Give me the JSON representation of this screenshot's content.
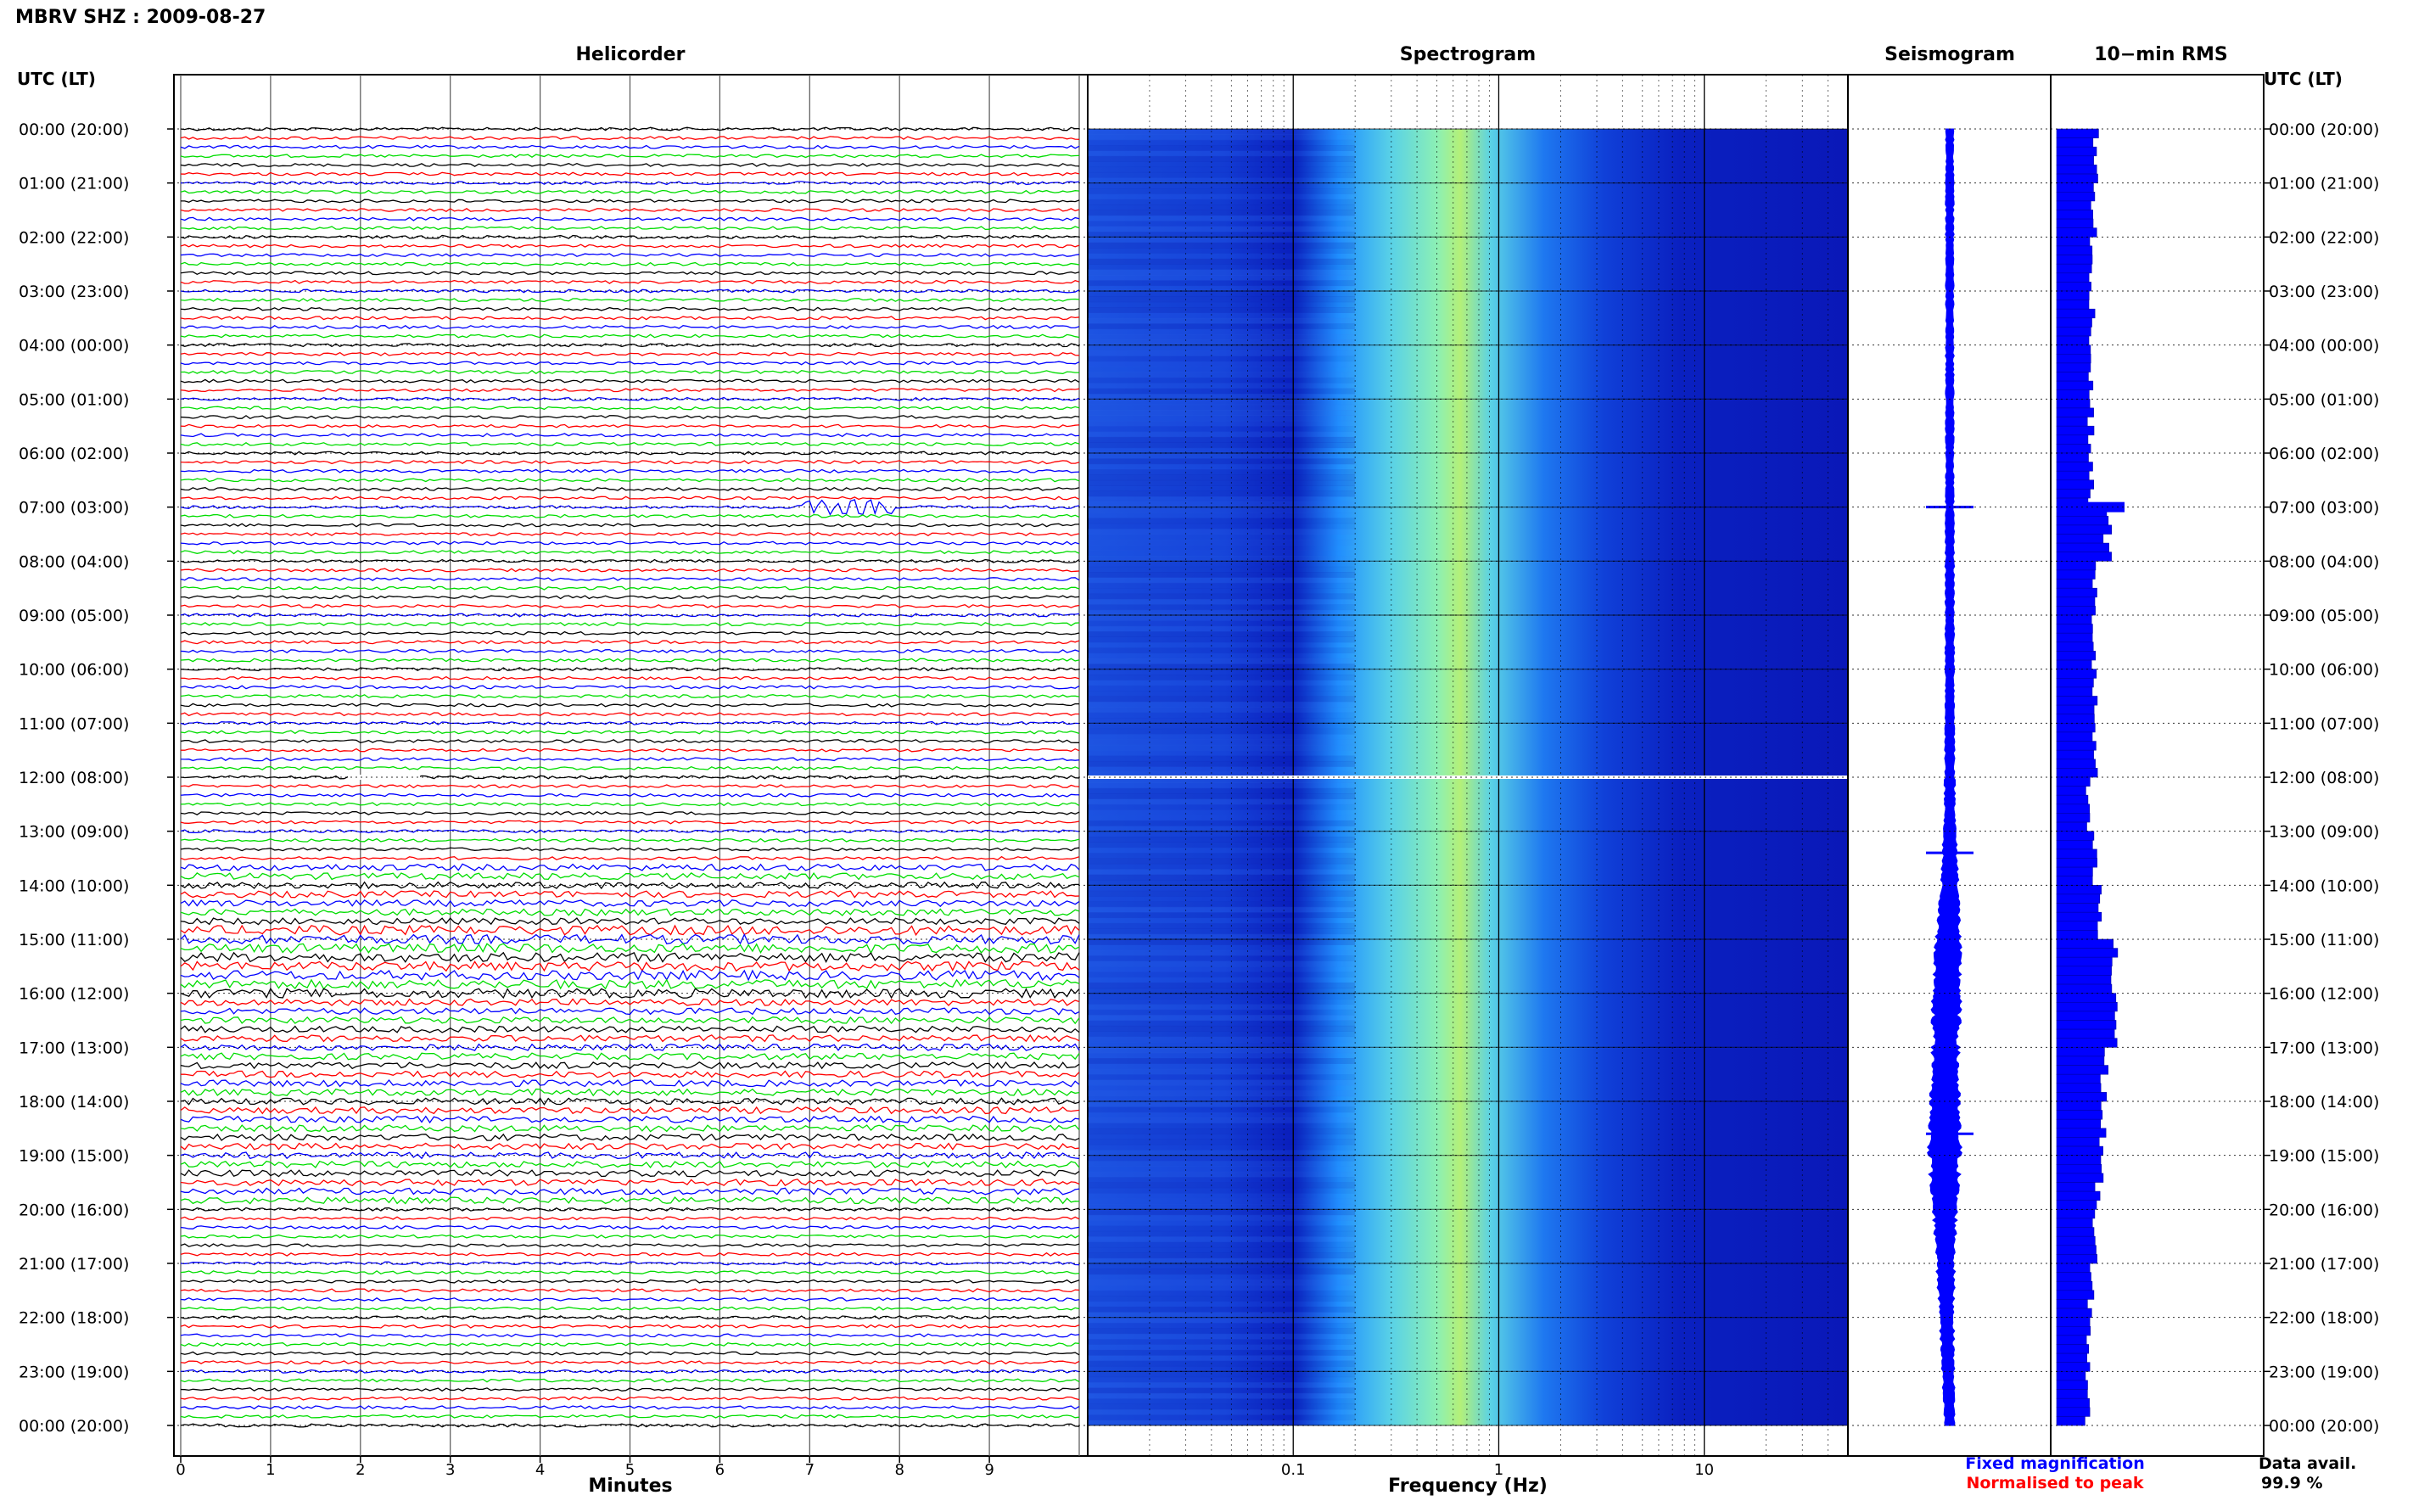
{
  "title": "MBRV SHZ : 2009-08-27",
  "colors": {
    "trace_cycle": [
      "#000000",
      "#ff0000",
      "#0000ff",
      "#00dd00"
    ],
    "seismogram": "#0000ff",
    "rms": "#0000ff",
    "legend_fixed": "#0000ff",
    "legend_norm": "#ff0000",
    "spec_low": "#0a14c8",
    "spec_mid": "#1e90ff",
    "spec_high": "#6ee6c8",
    "spec_peak": "#c8f064"
  },
  "labels": {
    "utc_left": "UTC (LT)",
    "utc_right": "UTC (LT)",
    "data_avail": "Data avail.",
    "data_avail_value": "99.9 %",
    "legend_fixed": "Fixed magnification",
    "legend_norm": "Normalised to peak"
  },
  "time_ticks": [
    "00:00 (20:00)",
    "01:00 (21:00)",
    "02:00 (22:00)",
    "03:00 (23:00)",
    "04:00 (00:00)",
    "05:00 (01:00)",
    "06:00 (02:00)",
    "07:00 (03:00)",
    "08:00 (04:00)",
    "09:00 (05:00)",
    "10:00 (06:00)",
    "11:00 (07:00)",
    "12:00 (08:00)",
    "13:00 (09:00)",
    "14:00 (10:00)",
    "15:00 (11:00)",
    "16:00 (12:00)",
    "17:00 (13:00)",
    "18:00 (14:00)",
    "19:00 (15:00)",
    "20:00 (16:00)",
    "21:00 (17:00)",
    "22:00 (18:00)",
    "23:00 (19:00)",
    "00:00 (20:00)"
  ],
  "chart_data": [
    {
      "type": "line",
      "panel": "helicorder",
      "title": "Helicorder",
      "xlabel": "Minutes",
      "xlim": [
        0,
        10
      ],
      "xticks": [
        "0",
        "1",
        "2",
        "3",
        "4",
        "5",
        "6",
        "7",
        "8",
        "9"
      ],
      "rows_per_hour": 6,
      "hours": 24
    },
    {
      "type": "heatmap",
      "panel": "spectrogram",
      "title": "Spectrogram",
      "xlabel": "Frequency (Hz)",
      "xscale": "log",
      "xlim": [
        0.01,
        50
      ],
      "xticks": [
        "0.1",
        "1",
        "10"
      ],
      "ylim_hours": [
        0,
        24
      ],
      "data_gap_hour": 12.0
    },
    {
      "type": "line",
      "panel": "seismogram",
      "title": "Seismogram",
      "envelope_hours": [
        0,
        1,
        2,
        3,
        4,
        5,
        6,
        7,
        8,
        9,
        10,
        11,
        12,
        13,
        14,
        15,
        16,
        17,
        18,
        19,
        20,
        21,
        22,
        23,
        24
      ],
      "envelope_rel": [
        0.2,
        0.2,
        0.2,
        0.2,
        0.2,
        0.2,
        0.2,
        0.2,
        0.22,
        0.22,
        0.22,
        0.24,
        0.25,
        0.3,
        0.45,
        0.6,
        0.7,
        0.65,
        0.7,
        0.8,
        0.6,
        0.45,
        0.35,
        0.3,
        0.25
      ],
      "events_hours": [
        7.0,
        13.4,
        18.6
      ]
    },
    {
      "type": "bar",
      "panel": "rms",
      "title": "10−min RMS",
      "hours": [
        0,
        1,
        2,
        3,
        4,
        5,
        6,
        7,
        8,
        9,
        10,
        11,
        12,
        13,
        14,
        15,
        16,
        17,
        18,
        19,
        20,
        21,
        22,
        23
      ],
      "values_rel": [
        0.23,
        0.22,
        0.2,
        0.21,
        0.2,
        0.2,
        0.2,
        0.3,
        0.22,
        0.22,
        0.22,
        0.22,
        0.18,
        0.22,
        0.25,
        0.33,
        0.35,
        0.28,
        0.27,
        0.25,
        0.22,
        0.2,
        0.19,
        0.18
      ]
    }
  ]
}
